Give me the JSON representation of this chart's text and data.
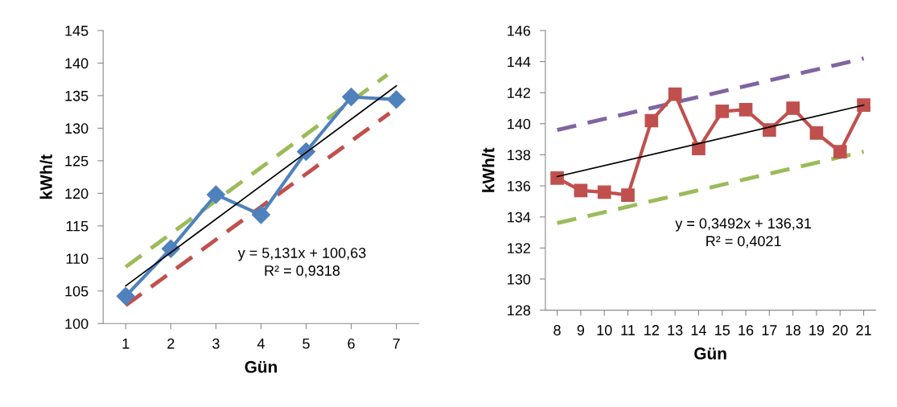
{
  "chart_data": [
    {
      "type": "line",
      "xlabel": "Gün",
      "ylabel": "kWh/t",
      "xlim": [
        0.5,
        7.5
      ],
      "xticks": [
        1,
        2,
        3,
        4,
        5,
        6,
        7
      ],
      "ylim": [
        100,
        145
      ],
      "yticks": [
        100,
        105,
        110,
        115,
        120,
        125,
        130,
        135,
        140,
        145
      ],
      "series": [
        {
          "color": "#9bbb59",
          "x": [
            1,
            6.8
          ],
          "values": [
            108.7,
            138.2
          ],
          "line_style": "dashed",
          "marker": "none"
        },
        {
          "color": "#c0504d",
          "x": [
            1,
            6.85
          ],
          "values": [
            102.8,
            132.3
          ],
          "line_style": "dashed",
          "marker": "none"
        },
        {
          "color": "#4f81bd",
          "x": [
            1,
            2,
            3,
            4,
            5,
            6,
            7
          ],
          "values": [
            104.2,
            111.5,
            119.8,
            116.7,
            126.4,
            134.8,
            134.4
          ],
          "line_style": "solid",
          "marker": "diamond"
        },
        {
          "color": "#000000",
          "x": [
            1,
            7
          ],
          "values": [
            105.8,
            136.5
          ],
          "line_style": "solid",
          "marker": "none"
        }
      ],
      "annotations": [
        "y = 5,131x + 100,63\nR² = 0,9318"
      ]
    },
    {
      "type": "line",
      "xlabel": "Gün",
      "ylabel": "kWh/t",
      "xlim": [
        7.5,
        21.5
      ],
      "xticks": [
        8,
        9,
        10,
        11,
        12,
        13,
        14,
        15,
        16,
        17,
        18,
        19,
        20,
        21
      ],
      "ylim": [
        128,
        146
      ],
      "yticks": [
        128,
        130,
        132,
        134,
        136,
        138,
        140,
        142,
        144,
        146
      ],
      "series": [
        {
          "color": "#8064a2",
          "x": [
            8,
            21
          ],
          "values": [
            139.6,
            144.2
          ],
          "line_style": "dashed",
          "marker": "none"
        },
        {
          "color": "#9bbb59",
          "x": [
            8,
            21
          ],
          "values": [
            133.6,
            138.2
          ],
          "line_style": "dashed",
          "marker": "none"
        },
        {
          "color": "#c0504d",
          "x": [
            8,
            9,
            10,
            11,
            12,
            13,
            14,
            15,
            16,
            17,
            18,
            19,
            20,
            21
          ],
          "values": [
            136.5,
            135.7,
            135.6,
            135.4,
            140.2,
            141.9,
            138.4,
            140.8,
            140.9,
            139.6,
            141.0,
            139.4,
            138.2,
            141.2
          ],
          "line_style": "solid",
          "marker": "square"
        },
        {
          "color": "#000000",
          "x": [
            8,
            21
          ],
          "values": [
            136.6,
            141.2
          ],
          "line_style": "solid",
          "marker": "none"
        }
      ],
      "annotations": [
        "y = 0,3492x + 136,31\nR² = 0,4021"
      ]
    }
  ]
}
